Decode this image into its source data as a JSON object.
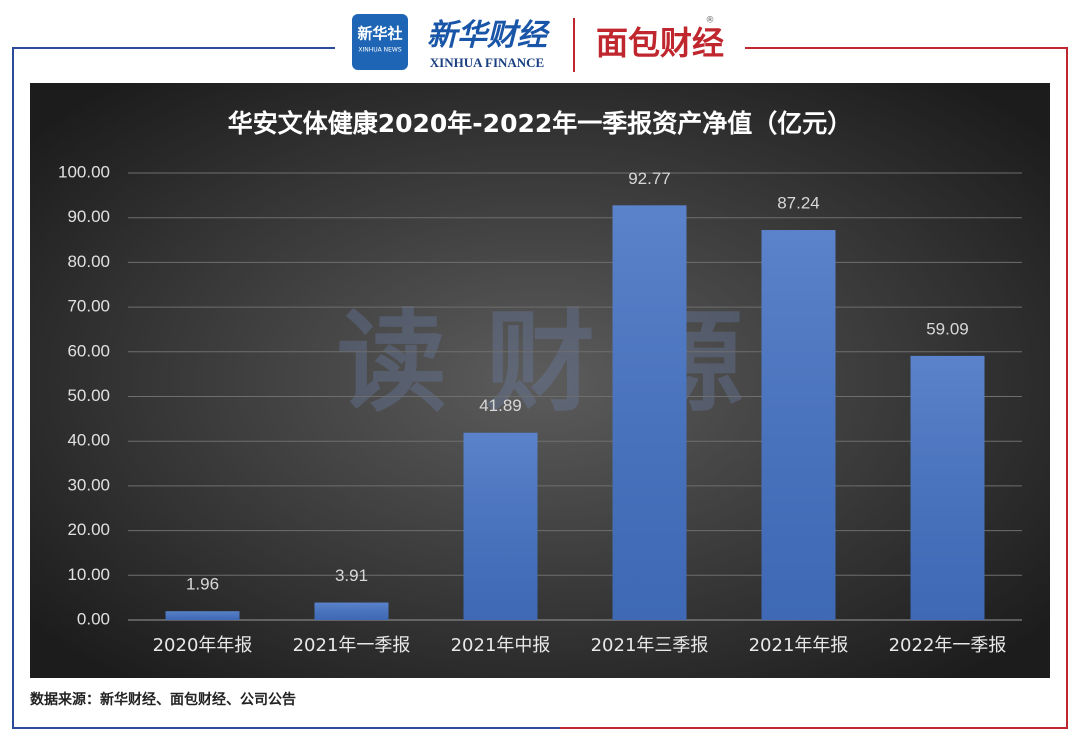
{
  "header": {
    "xinhua_logo": "新华社",
    "xinhua_logo_sub": "XINHUA NEWS",
    "brand": "新华财经",
    "brand_sub": "XINHUA FINANCE",
    "partner": "面包财经",
    "registered": "®"
  },
  "watermark": "读 财 源",
  "chart_data": {
    "type": "bar",
    "title": "华安文体健康2020年-2022年一季报资产净值（亿元）",
    "categories": [
      "2020年年报",
      "2021年一季报",
      "2021年中报",
      "2021年三季报",
      "2021年年报",
      "2022年一季报"
    ],
    "values": [
      1.96,
      3.91,
      41.89,
      92.77,
      87.24,
      59.09
    ],
    "color": "#4472c4",
    "ylim": [
      0,
      100
    ],
    "yticks": [
      {
        "value": 0,
        "label": "0.00"
      },
      {
        "value": 10,
        "label": "10.00"
      },
      {
        "value": 20,
        "label": "20.00"
      },
      {
        "value": 30,
        "label": "30.00"
      },
      {
        "value": 40,
        "label": "40.00"
      },
      {
        "value": 50,
        "label": "50.00"
      },
      {
        "value": 60,
        "label": "60.00"
      },
      {
        "value": 70,
        "label": "70.00"
      },
      {
        "value": 80,
        "label": "80.00"
      },
      {
        "value": 90,
        "label": "90.00"
      },
      {
        "value": 100,
        "label": "100.00"
      }
    ],
    "grid": true
  },
  "footer": {
    "source": "数据来源：新华财经、面包财经、公司公告"
  }
}
